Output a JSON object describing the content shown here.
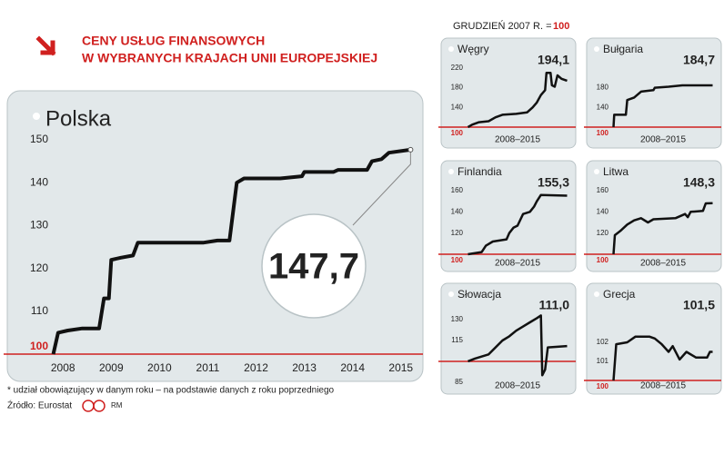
{
  "header": {
    "title": [
      "CENY USŁUG FINANSOWYCH",
      "W WYBRANYCH KRAJACH UNII EUROPEJSKIEJ"
    ],
    "base_note": "GRUDZIEŃ 2007 R. =",
    "base_value": 100
  },
  "footnote": "* udział obowiązujący w danym roku – na podstawie danych z roku poprzedniego",
  "source": "Źródło: Eurostat",
  "credit": "RM",
  "chart_data": [
    {
      "type": "line",
      "title": "Polska",
      "color": "#111111",
      "baseline": 100,
      "baseline_color": "#d0201f",
      "x": [
        2007.8,
        2007.9,
        2008.1,
        2008.4,
        2008.75,
        2008.85,
        2008.95,
        2009.0,
        2009.2,
        2009.45,
        2009.55,
        2010.9,
        2011.2,
        2011.45,
        2011.6,
        2011.75,
        2012.5,
        2012.95,
        2013.0,
        2013.6,
        2013.7,
        2014.3,
        2014.4,
        2014.6,
        2014.75,
        2015.2
      ],
      "values": [
        100,
        105,
        105.5,
        106,
        106,
        113,
        113,
        122,
        122.5,
        123,
        126,
        126,
        126.5,
        126.5,
        140,
        141,
        141,
        141.5,
        142.5,
        142.5,
        143,
        143,
        145,
        145.5,
        147,
        147.7
      ],
      "value_labels": [
        null,
        null,
        null,
        null,
        null,
        null,
        null,
        null,
        null,
        null,
        null,
        null,
        null,
        null,
        null,
        null,
        null,
        null,
        null,
        null,
        null,
        null,
        null,
        null,
        null,
        "147,7"
      ],
      "xlim": [
        2007.6,
        2015.4
      ],
      "xticks": [
        2008,
        2009,
        2010,
        2011,
        2012,
        2013,
        2014,
        2015
      ],
      "ylim": [
        98.3,
        152
      ],
      "yticks": [
        100,
        110,
        120,
        130,
        140,
        150
      ]
    },
    {
      "type": "line",
      "title": "Węgry",
      "color": "#111111",
      "baseline": 100,
      "baseline_color": "#d0201f",
      "xlabel": "2008–2015",
      "x": [
        2008,
        2008.3,
        2008.8,
        2009.5,
        2010.0,
        2010.5,
        2011.5,
        2012.3,
        2012.7,
        2013.0,
        2013.3,
        2013.6,
        2013.7,
        2014.0,
        2014.1,
        2014.3,
        2014.5,
        2014.8,
        2015.2
      ],
      "values": [
        100,
        105,
        110,
        112,
        120,
        125,
        127,
        130,
        140,
        150,
        165,
        175,
        210,
        210,
        185,
        182,
        205,
        198,
        194.1
      ],
      "value_labels": [
        null,
        null,
        null,
        null,
        null,
        null,
        null,
        null,
        null,
        null,
        null,
        null,
        null,
        null,
        null,
        null,
        null,
        null,
        "194,1"
      ],
      "xlim": [
        2007.9,
        2015.3
      ],
      "ylim": [
        94.5,
        229
      ],
      "yticks": [
        100,
        140,
        180,
        220
      ]
    },
    {
      "type": "line",
      "title": "Bułgaria",
      "color": "#111111",
      "baseline": 100,
      "baseline_color": "#d0201f",
      "xlabel": "2008–2015",
      "x": [
        2008,
        2008.05,
        2008.9,
        2009.0,
        2009.5,
        2010.0,
        2010.9,
        2011.0,
        2012.0,
        2013.0,
        2015.2
      ],
      "values": [
        100,
        125,
        125,
        155,
        160,
        172,
        175,
        180,
        182,
        184.7,
        184.7
      ],
      "value_labels": [
        null,
        null,
        null,
        null,
        null,
        null,
        null,
        null,
        null,
        null,
        "184,7"
      ],
      "xlim": [
        2007.9,
        2015.3
      ],
      "ylim": [
        94.5,
        229
      ],
      "yticks": [
        100,
        140,
        180
      ]
    },
    {
      "type": "line",
      "title": "Finlandia",
      "color": "#111111",
      "baseline": 100,
      "baseline_color": "#d0201f",
      "xlabel": "2008–2015",
      "x": [
        2008,
        2009.0,
        2009.3,
        2009.8,
        2010.8,
        2011.0,
        2011.3,
        2011.6,
        2012.0,
        2012.5,
        2012.8,
        2013.0,
        2013.3,
        2015.2
      ],
      "values": [
        100,
        102,
        108,
        112,
        114,
        120,
        125,
        127,
        138,
        140,
        145,
        150,
        156,
        155.3
      ],
      "value_labels": [
        null,
        null,
        null,
        null,
        null,
        null,
        null,
        null,
        null,
        null,
        null,
        null,
        null,
        "155,3"
      ],
      "xlim": [
        2007.9,
        2015.3
      ],
      "ylim": [
        97.4,
        164.3
      ],
      "yticks": [
        100,
        120,
        140,
        160
      ]
    },
    {
      "type": "line",
      "title": "Litwa",
      "color": "#111111",
      "baseline": 100,
      "baseline_color": "#d0201f",
      "xlabel": "2008–2015",
      "x": [
        2008,
        2008.1,
        2008.5,
        2009.0,
        2009.5,
        2010.0,
        2010.5,
        2010.9,
        2012.5,
        2013.2,
        2013.4,
        2013.6,
        2014.5,
        2014.7,
        2015.2
      ],
      "values": [
        100,
        118,
        122,
        128,
        132,
        134,
        130,
        133,
        134,
        138,
        135,
        140,
        141,
        148,
        148.3
      ],
      "value_labels": [
        null,
        null,
        null,
        null,
        null,
        null,
        null,
        null,
        null,
        null,
        null,
        null,
        null,
        null,
        "148,3"
      ],
      "xlim": [
        2007.9,
        2015.3
      ],
      "ylim": [
        97.4,
        164.3
      ],
      "yticks": [
        100,
        120,
        140,
        160
      ]
    },
    {
      "type": "line",
      "title": "Słowacja",
      "color": "#111111",
      "baseline": 100,
      "baseline_color": "#d0201f",
      "xlabel": "2008–2015",
      "x": [
        2008,
        2008.5,
        2009.5,
        2010.0,
        2010.5,
        2011.0,
        2011.5,
        2012.0,
        2012.5,
        2013.0,
        2013.3,
        2013.4,
        2013.6,
        2013.8,
        2015.2
      ],
      "values": [
        100,
        102,
        105,
        110,
        115,
        118,
        122,
        125,
        128,
        131,
        133,
        90,
        94,
        110,
        111
      ],
      "value_labels": [
        null,
        null,
        null,
        null,
        null,
        null,
        null,
        null,
        null,
        null,
        null,
        null,
        null,
        null,
        "111,0"
      ],
      "xlim": [
        2007.9,
        2015.3
      ],
      "ylim": [
        83,
        136.5
      ],
      "yticks": [
        85,
        115,
        130
      ]
    },
    {
      "type": "line",
      "title": "Grecja",
      "color": "#111111",
      "baseline": 100,
      "baseline_color": "#d0201f",
      "xlabel": "2008–2015",
      "x": [
        2008,
        2008.2,
        2009.0,
        2009.6,
        2010.6,
        2011.0,
        2011.5,
        2012.0,
        2012.3,
        2012.8,
        2013.3,
        2014.0,
        2014.8,
        2015.0,
        2015.2
      ],
      "values": [
        100,
        101.9,
        102,
        102.3,
        102.3,
        102.2,
        101.9,
        101.5,
        101.8,
        101.1,
        101.5,
        101.2,
        101.2,
        101.5,
        101.5
      ],
      "value_labels": [
        null,
        null,
        null,
        null,
        null,
        null,
        null,
        null,
        null,
        null,
        null,
        null,
        null,
        null,
        "101,5"
      ],
      "xlim": [
        2007.9,
        2015.3
      ],
      "ylim": [
        99.86,
        103.76
      ],
      "yticks": [
        100,
        101,
        102
      ]
    }
  ]
}
